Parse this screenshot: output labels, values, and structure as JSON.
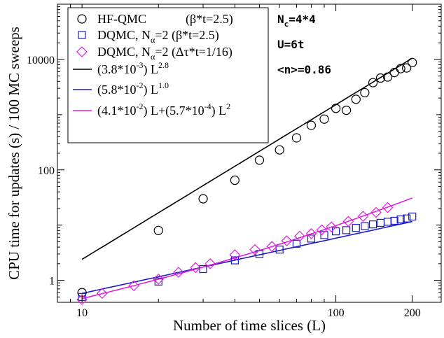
{
  "chart_data": {
    "type": "scatter",
    "xlabel": "Number of time slices (L)",
    "ylabel": "CPU time for updates (s) / 100 MC sweeps",
    "xscale": "log",
    "yscale": "log",
    "xlim": [
      8,
      260
    ],
    "ylim": [
      0.4,
      100000
    ],
    "x_ticks": [
      10,
      100,
      200
    ],
    "y_ticks": [
      1,
      100,
      10000
    ],
    "legend_position": "top-left",
    "colors": {
      "hf": "#000000",
      "dqmc_beta": "#1a1acc",
      "dqmc_dtau": "#e020e0"
    },
    "series": [
      {
        "name": "HF-QMC",
        "legend_note": "(β*t=2.5)",
        "marker": "circle",
        "color": "#000000",
        "x": [
          10,
          20,
          30,
          40,
          50,
          60,
          70,
          80,
          90,
          100,
          110,
          120,
          130,
          140,
          150,
          160,
          170,
          180,
          190,
          200
        ],
        "y": [
          0.6,
          8,
          30,
          65,
          150,
          230,
          380,
          640,
          830,
          1300,
          1200,
          1900,
          2500,
          3800,
          4600,
          4800,
          5800,
          6800,
          7000,
          8800
        ]
      },
      {
        "name": "DQMC, N",
        "name_sub": "α",
        "name_suffix": "=2",
        "legend_note": "(β*t=2.5)",
        "marker": "square",
        "color": "#1a1acc",
        "x": [
          10,
          20,
          30,
          40,
          50,
          60,
          70,
          80,
          90,
          100,
          110,
          120,
          130,
          140,
          150,
          160,
          170,
          180,
          190,
          200
        ],
        "y": [
          0.5,
          0.95,
          1.6,
          2.3,
          3.0,
          3.6,
          4.6,
          5.7,
          6.6,
          7.7,
          8.1,
          8.9,
          9.6,
          10.3,
          11.0,
          11.5,
          12.0,
          12.7,
          13.2,
          14.3
        ]
      },
      {
        "name": "DQMC, N",
        "name_sub": "α",
        "name_suffix": "=2",
        "legend_note": "(Δτ*t=1/16)",
        "marker": "diamond",
        "color": "#e020e0",
        "x": [
          10,
          12,
          16,
          20,
          24,
          28,
          32,
          40,
          48,
          56,
          64,
          72,
          80,
          88,
          96,
          112,
          128,
          144,
          160
        ],
        "y": [
          0.45,
          0.58,
          0.8,
          1.05,
          1.4,
          1.7,
          2.0,
          2.9,
          3.6,
          4.1,
          5.2,
          6.3,
          7.0,
          8.2,
          9.3,
          11.7,
          14.4,
          17.0,
          20.8
        ]
      }
    ],
    "fits": [
      {
        "label": "(3.8*10",
        "label_exp": "-3",
        "label_mid": ") L",
        "label_exp2": "2.8",
        "color": "#000000",
        "kind": "power",
        "coef": 0.0038,
        "power": 2.8
      },
      {
        "label": "(5.8*10",
        "label_exp": "-2",
        "label_mid": ") L",
        "label_exp2": "1.0",
        "color": "#1a1acc",
        "kind": "power",
        "coef": 0.058,
        "power": 1.0
      },
      {
        "label": "(4.1*10",
        "label_exp": "-2",
        "label_mid": ") L+(5.7*10",
        "label_exp2": "-4",
        "label_end": ") L",
        "label_exp3": "2",
        "color": "#e020e0",
        "kind": "quad",
        "a": 0.041,
        "b": 0.00057
      }
    ],
    "annotations": [
      {
        "text": "N",
        "sub": "c",
        "suffix": "=4*4"
      },
      {
        "text": "U=6t"
      },
      {
        "text": "<n>=0.86"
      }
    ]
  }
}
